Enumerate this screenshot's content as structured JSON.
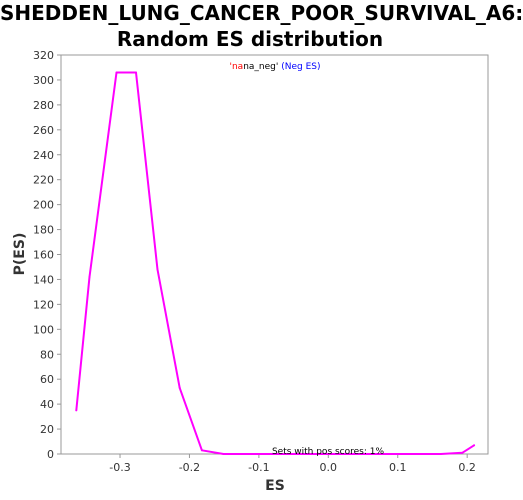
{
  "chart_data": {
    "type": "line",
    "title_lines": [
      "SHEDDEN_LUNG_CANCER_POOR_SURVIVAL_A6:",
      "Random ES distribution"
    ],
    "xlabel": "ES",
    "ylabel": "P(ES)",
    "xlim": [
      -0.385,
      0.23
    ],
    "ylim": [
      0,
      320
    ],
    "xticks": [
      -0.3,
      -0.2,
      -0.1,
      0.0,
      0.1,
      0.2
    ],
    "xtick_labels": [
      "-0.3",
      "-0.2",
      "-0.1",
      "0.0",
      "0.1",
      "0.2"
    ],
    "yticks": [
      0,
      20,
      40,
      60,
      80,
      100,
      120,
      140,
      160,
      180,
      200,
      220,
      240,
      260,
      280,
      300,
      320
    ],
    "ytick_labels": [
      "0",
      "20",
      "40",
      "60",
      "80",
      "100",
      "120",
      "140",
      "160",
      "180",
      "200",
      "220",
      "240",
      "260",
      "280",
      "300",
      "320"
    ],
    "grid": false,
    "legend": {
      "parts": [
        {
          "text": "'na",
          "color": "#ff0000"
        },
        {
          "text": "na_neg'",
          "color": "#000000"
        },
        {
          "text": " (Neg ES)",
          "color": "#0000ff"
        }
      ]
    },
    "annotation": "Sets with pos scores: 1%",
    "series": [
      {
        "color": "#ff00ff",
        "x": [
          -0.363,
          -0.344,
          -0.305,
          -0.277,
          -0.246,
          -0.214,
          -0.182,
          -0.151,
          -0.12,
          -0.089,
          -0.057,
          -0.026,
          0.005,
          0.037,
          0.068,
          0.099,
          0.13,
          0.162,
          0.193,
          0.21
        ],
        "y": [
          35,
          142,
          306,
          306,
          148,
          53,
          3,
          0,
          0,
          0,
          0,
          0,
          0,
          0,
          0,
          0,
          0,
          0,
          1,
          7
        ]
      }
    ]
  }
}
